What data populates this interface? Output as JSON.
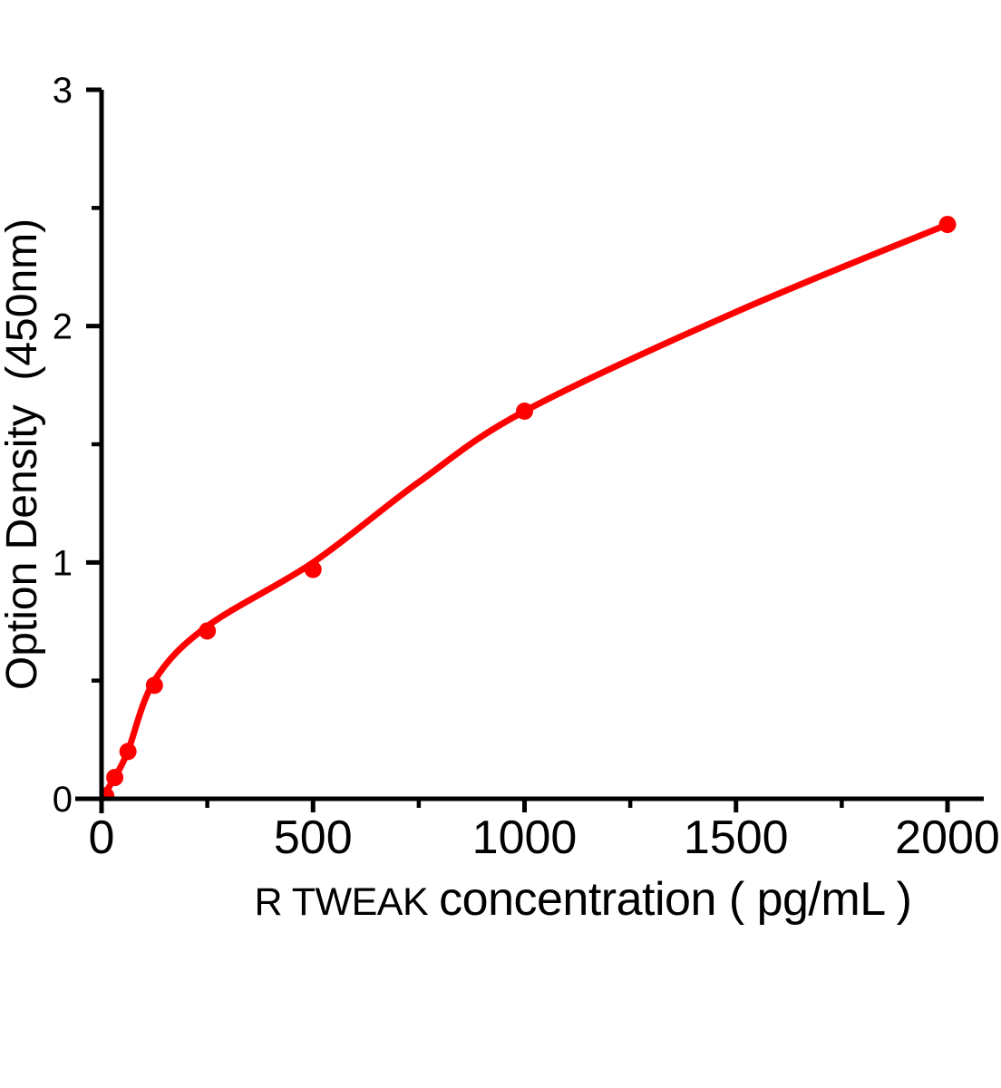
{
  "figure": {
    "background": "#ffffff",
    "axis_color": "#000000",
    "accent_color": "#ff0000"
  },
  "chart_data": {
    "type": "scatter",
    "description": "ELISA standard curve: red data points with fitted red curve on black axes",
    "title": "",
    "xlabel_prefix": "R TWEAK",
    "xlabel_main": "concentration ( pg/mL )",
    "ylabel": "Option Density  (450nm)",
    "xlim": [
      0,
      2085
    ],
    "ylim": [
      0,
      3
    ],
    "x_major_ticks": [
      0,
      500,
      1000,
      1500,
      2000
    ],
    "x_minor_ticks": [
      250,
      750,
      1250,
      1750
    ],
    "y_major_ticks": [
      0,
      1,
      2,
      3
    ],
    "y_minor_ticks": [
      0.5,
      1.5,
      2.5
    ],
    "grid": false,
    "legend": false,
    "series_color": "#ff0000",
    "axis_color": "#000000",
    "points": [
      {
        "x": 31.25,
        "y": 0.09
      },
      {
        "x": 62.5,
        "y": 0.2
      },
      {
        "x": 125,
        "y": 0.48
      },
      {
        "x": 250,
        "y": 0.71
      },
      {
        "x": 500,
        "y": 0.97
      },
      {
        "x": 1000,
        "y": 1.64
      },
      {
        "x": 2000,
        "y": 2.43
      }
    ],
    "origin_blank_point": {
      "x": 10,
      "y": 0.012
    },
    "fit_curve": [
      [
        0,
        0
      ],
      [
        31,
        0.09
      ],
      [
        62,
        0.2
      ],
      [
        125,
        0.5
      ],
      [
        250,
        0.73
      ],
      [
        500,
        1.0
      ],
      [
        750,
        1.34
      ],
      [
        1000,
        1.64
      ],
      [
        1500,
        2.06
      ],
      [
        2000,
        2.43
      ]
    ]
  }
}
